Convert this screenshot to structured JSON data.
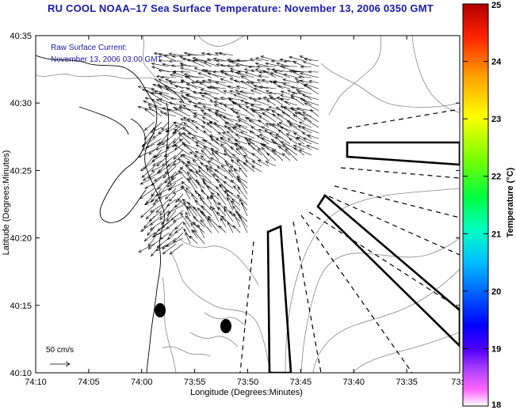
{
  "title": "RU COOL  NOAA–17  Sea Surface Temperature:  November 13, 2006 0350 GMT",
  "overlay": {
    "line1": "Raw Surface Current:",
    "line2": "November 13, 2006 03:00 GMT",
    "scale_label": "50 cm/s"
  },
  "axes": {
    "xlabel": "Longitude (Degrees:Minutes)",
    "ylabel": "Latitude (Degrees:Minutes)",
    "xticks": [
      "74:10",
      "74:05",
      "74:00",
      "73:55",
      "73:50",
      "73:45",
      "73:40",
      "73:35",
      "73:3"
    ],
    "yticks": [
      "40:35",
      "40:30",
      "40:25",
      "40:20",
      "40:15",
      "40:10"
    ]
  },
  "colorbar": {
    "label": "Temperature (°C)",
    "ticks": [
      "25",
      "24",
      "23",
      "22",
      "21",
      "20",
      "19",
      "18"
    ],
    "min": 18,
    "max": 25
  },
  "colors": {
    "title": "#1a1aa8",
    "overlay_text": "#1a1aa8"
  }
}
